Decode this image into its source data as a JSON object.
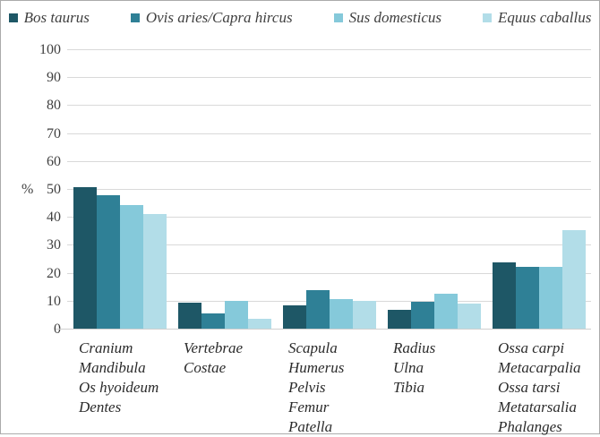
{
  "chart_data": {
    "type": "bar",
    "title": "",
    "ylabel": "%",
    "ylim": [
      0,
      100
    ],
    "yticks": [
      0,
      10,
      20,
      30,
      40,
      50,
      60,
      70,
      80,
      90,
      100
    ],
    "grid": true,
    "legend_position": "top",
    "categories": [
      [
        "Cranium",
        "Mandibula",
        "Os hyoideum",
        "Dentes"
      ],
      [
        "Vertebrae",
        "Costae"
      ],
      [
        "Scapula",
        "Humerus",
        "Pelvis",
        "Femur",
        "Patella"
      ],
      [
        "Radius",
        "Ulna",
        "Tibia"
      ],
      [
        "Ossa carpi",
        "Metacarpalia",
        "Ossa tarsi",
        "Metatarsalia",
        "Phalanges"
      ]
    ],
    "series": [
      {
        "name": "Bos taurus",
        "color": "#1e5766",
        "values": [
          51,
          9.5,
          8.8,
          6.9,
          24
        ]
      },
      {
        "name": "Ovis aries/Capra hircus",
        "color": "#2f8096",
        "values": [
          48,
          5.7,
          14.2,
          10,
          22.4
        ]
      },
      {
        "name": "Sus domesticus",
        "color": "#85c9da",
        "values": [
          44.5,
          10.4,
          10.8,
          12.7,
          22.3
        ]
      },
      {
        "name": "Equus caballus",
        "color": "#b2dde8",
        "values": [
          41.5,
          4,
          10.3,
          9.3,
          35.5
        ]
      }
    ]
  },
  "style": {
    "gridline_color": "#d9d9d9",
    "axis_line_color": "#cfcfcf",
    "text_color": "#404040",
    "frame_border_color": "#ababab"
  }
}
